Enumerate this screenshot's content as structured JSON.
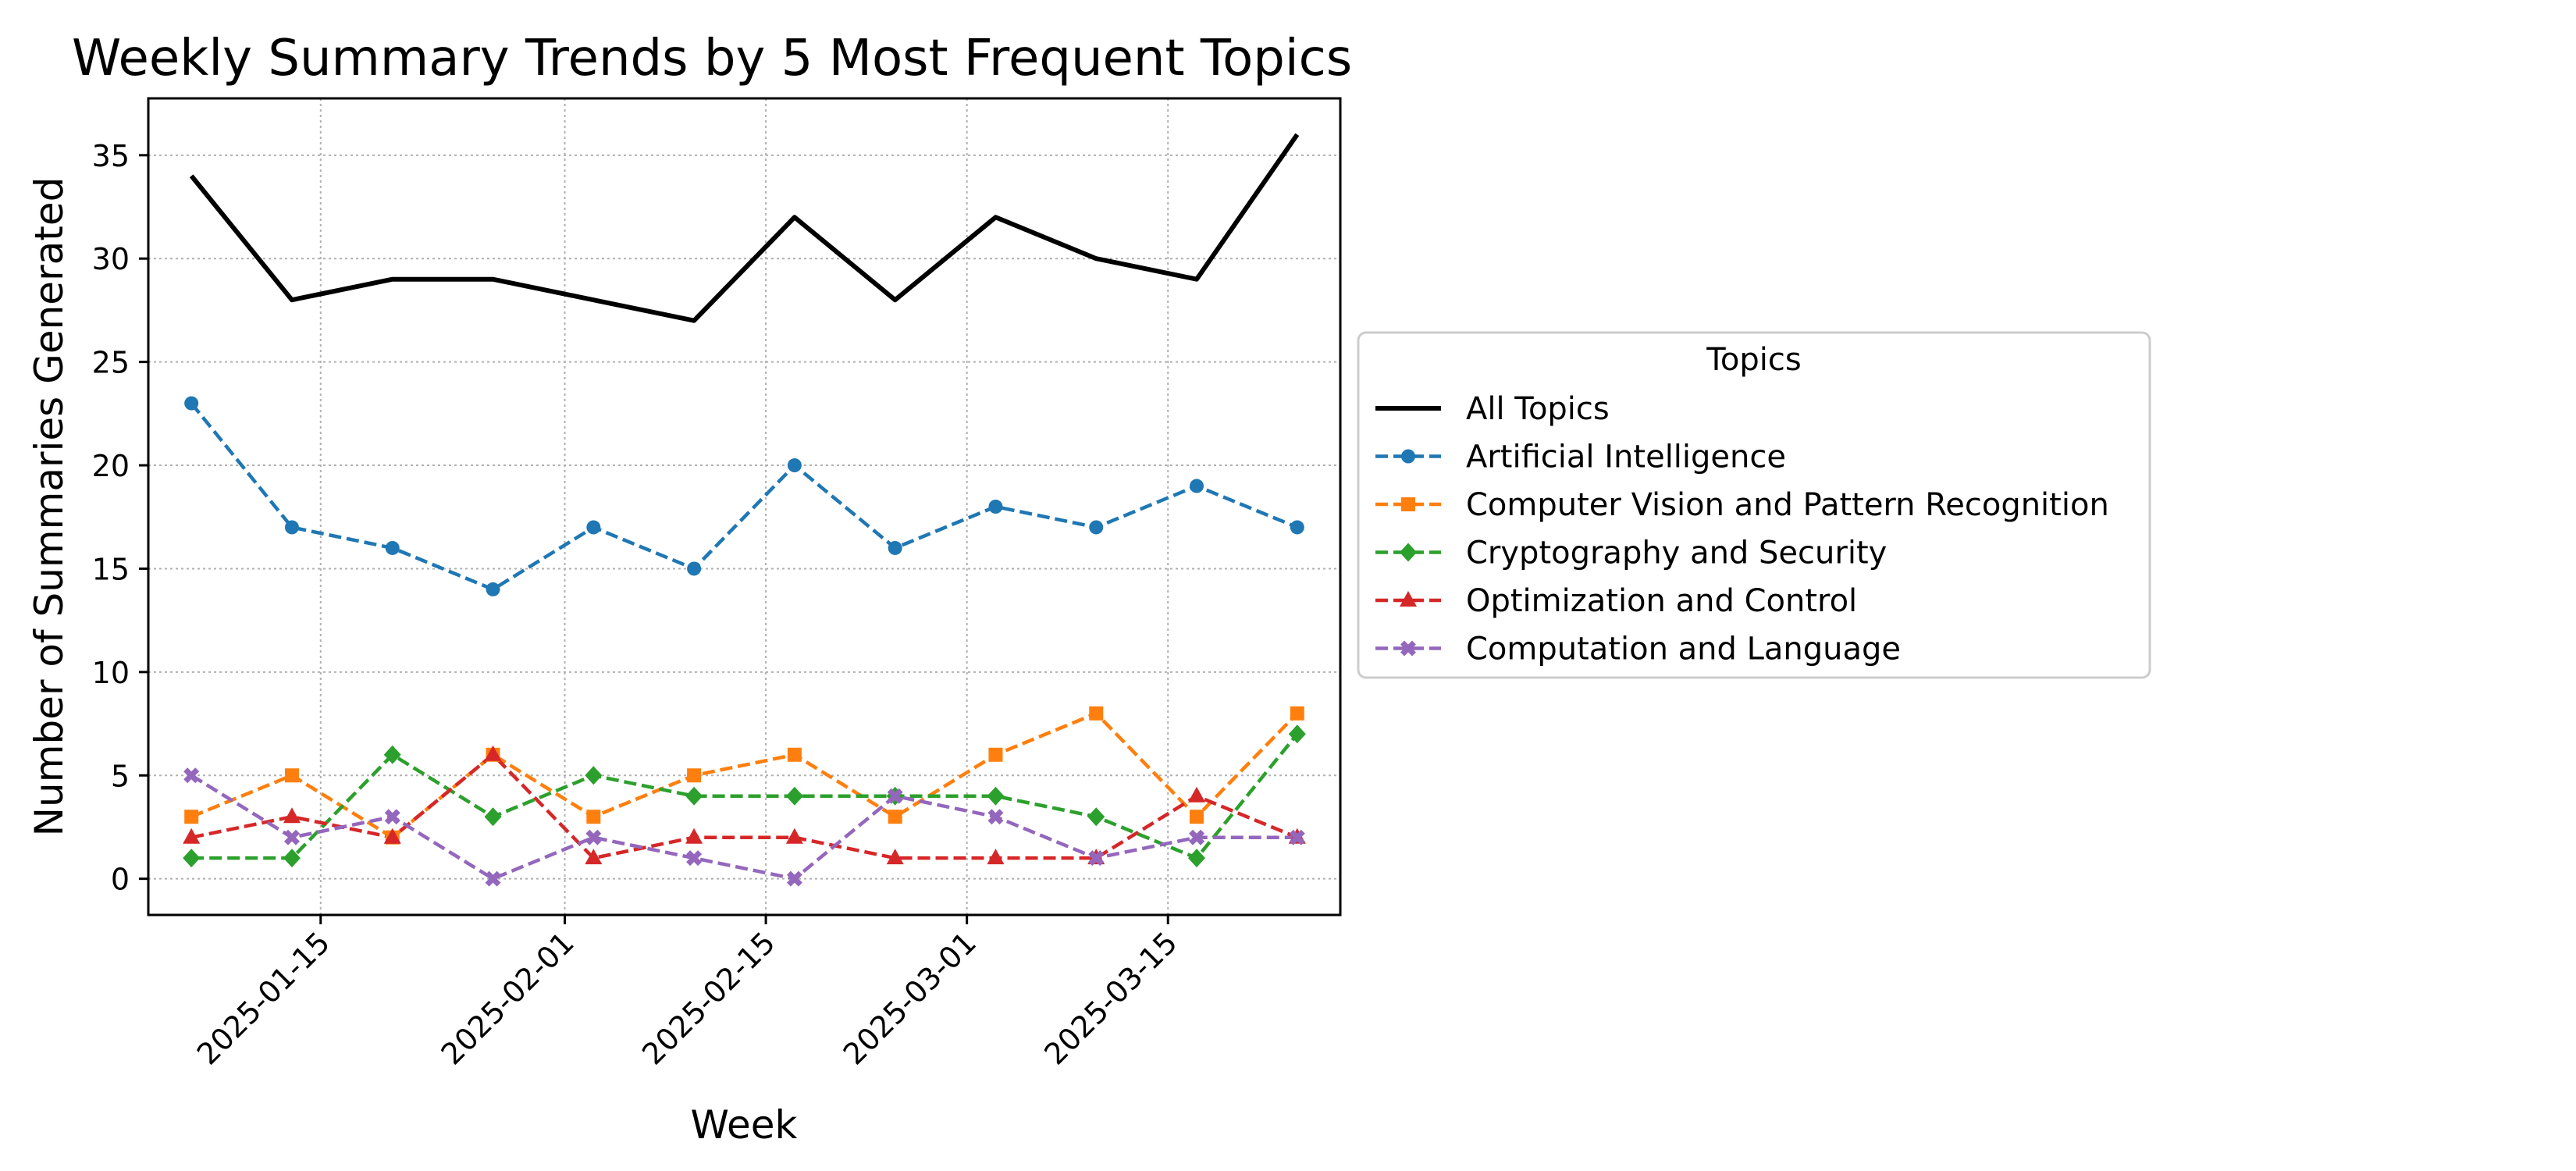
{
  "chart_data": {
    "type": "line",
    "title": "Weekly Summary Trends by 5 Most Frequent Topics",
    "xlabel": "Week",
    "ylabel": "Number of Summaries Generated",
    "x": [
      "2025-01-06",
      "2025-01-13",
      "2025-01-20",
      "2025-01-27",
      "2025-02-03",
      "2025-02-10",
      "2025-02-17",
      "2025-02-24",
      "2025-03-03",
      "2025-03-10",
      "2025-03-17",
      "2025-03-24"
    ],
    "xticks": [
      "2025-01-15",
      "2025-02-01",
      "2025-02-15",
      "2025-03-01",
      "2025-03-15"
    ],
    "xlim": [
      "2025-01-03",
      "2025-03-27"
    ],
    "yticks": [
      0,
      5,
      10,
      15,
      20,
      25,
      30,
      35
    ],
    "ylim": [
      -1.75,
      37.75
    ],
    "grid": true,
    "legend": {
      "title": "Topics",
      "placement": "center-right outside"
    },
    "series": [
      {
        "name": "All Topics",
        "color": "#000000",
        "style": "solid",
        "marker": "none",
        "values": [
          34,
          28,
          29,
          29,
          28,
          27,
          32,
          28,
          32,
          30,
          29,
          36
        ]
      },
      {
        "name": "Artificial Intelligence",
        "color": "#1f77b4",
        "style": "dashed",
        "marker": "circle",
        "values": [
          23,
          17,
          16,
          14,
          17,
          15,
          20,
          16,
          18,
          17,
          19,
          17
        ]
      },
      {
        "name": "Computer Vision and Pattern Recognition",
        "color": "#ff7f0e",
        "style": "dashed",
        "marker": "square",
        "values": [
          3,
          5,
          2,
          6,
          3,
          5,
          6,
          3,
          6,
          8,
          3,
          8
        ]
      },
      {
        "name": "Cryptography and Security",
        "color": "#2ca02c",
        "style": "dashed",
        "marker": "diamond",
        "values": [
          1,
          1,
          6,
          3,
          5,
          4,
          4,
          4,
          4,
          3,
          1,
          7
        ]
      },
      {
        "name": "Optimization and Control",
        "color": "#d62728",
        "style": "dashed",
        "marker": "triangle",
        "values": [
          2,
          3,
          2,
          6,
          1,
          2,
          2,
          1,
          1,
          1,
          4,
          2
        ]
      },
      {
        "name": "Computation and Language",
        "color": "#9467bd",
        "style": "dashed",
        "marker": "x",
        "values": [
          5,
          2,
          3,
          0,
          2,
          1,
          0,
          4,
          3,
          1,
          2,
          2
        ]
      }
    ]
  }
}
